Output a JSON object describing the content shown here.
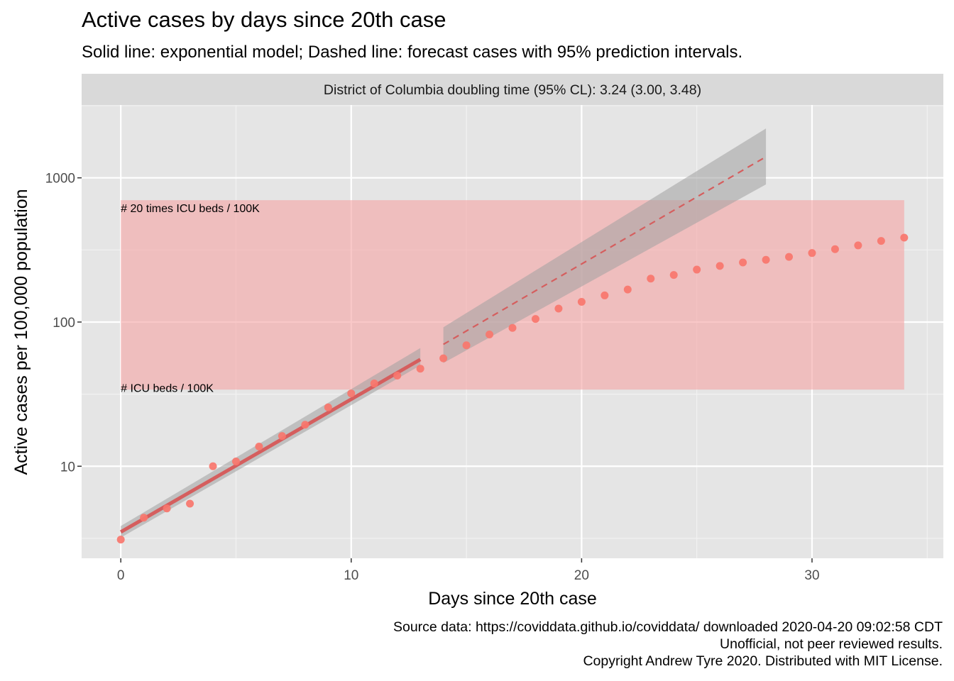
{
  "chart_data": {
    "type": "scatter",
    "title": "Active cases by days since 20th case",
    "subtitle": "Solid line: exponential model; Dashed line: forecast cases with 95% prediction intervals.",
    "facet_label": "District of Columbia doubling time (95% CL): 3.24 (3.00, 3.48)",
    "xlabel": "Days since 20th case",
    "ylabel": "Active cases per 100,000 population",
    "xlim": [
      -1.7,
      35.7
    ],
    "ylim": [
      2.3,
      3200
    ],
    "y_scale": "log10",
    "x_ticks": [
      0,
      10,
      20,
      30
    ],
    "y_ticks": [
      10,
      100,
      1000
    ],
    "grid": true,
    "colors": {
      "points": "#f8766d",
      "fit_line": "#d55e5e",
      "band": "#a0a0a0",
      "icu_rect": "#f5a3a3",
      "panel": "#e5e5e5",
      "strip": "#d9d9d9"
    },
    "series": [
      {
        "x": [
          0,
          1,
          2,
          3,
          4,
          5,
          6,
          7,
          8,
          9,
          10,
          11,
          12,
          13,
          14,
          15,
          16,
          17,
          18,
          19,
          20,
          21,
          22,
          23,
          24,
          25,
          26,
          27,
          28,
          29,
          30,
          31,
          32,
          33,
          34
        ],
        "y": [
          3.1,
          4.4,
          5.1,
          5.5,
          10,
          10.8,
          13.7,
          16.2,
          19.4,
          25.6,
          32,
          37.5,
          42.5,
          47.5,
          56,
          69,
          82,
          91,
          105,
          124,
          138,
          153,
          168,
          200,
          212,
          231,
          245,
          259,
          270,
          283,
          301,
          320,
          340,
          365,
          385
        ]
      }
    ],
    "fit": {
      "x_start": 0,
      "x_end": 13,
      "y_start": 3.5,
      "y_end": 55,
      "band_lo": [
        3.2,
        50
      ],
      "band_hi": [
        3.85,
        66
      ]
    },
    "forecast": {
      "x_start": 14,
      "x_end": 28,
      "y_start": 70,
      "y_end": 1400,
      "band_lo": [
        52,
        900
      ],
      "band_hi": [
        92,
        2200
      ]
    },
    "icu_band": {
      "x_start": 0,
      "x_end": 34,
      "y_low": 34,
      "y_high": 700
    },
    "annotations": [
      {
        "text": "# 20 times ICU beds / 100K",
        "x": 0,
        "y": 620
      },
      {
        "text": "# ICU beds / 100K",
        "x": 0,
        "y": 35
      }
    ]
  },
  "caption": {
    "line1": "Source data: https://coviddata.github.io/coviddata/ downloaded  2020-04-20 09:02:58 CDT",
    "line2": "Unofficial, not peer reviewed results.",
    "line3": "Copyright Andrew Tyre 2020. Distributed with MIT License."
  }
}
